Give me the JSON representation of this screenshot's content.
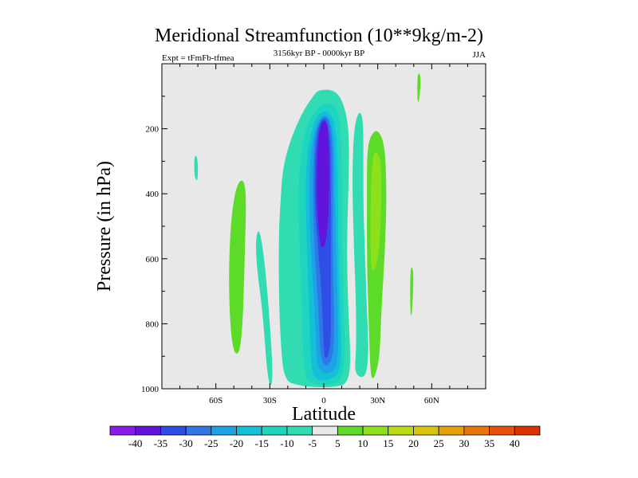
{
  "chart_data": {
    "type": "contour",
    "title": "Meridional Streamfunction (10**9kg/m-2)",
    "left_subtitle": "Expt = tFmFb-tfmea",
    "center_subtitle": "3156kyr BP - 0000kyr BP",
    "right_subtitle": "JJA",
    "xlabel": "Latitude",
    "ylabel": "Pressure (in hPa)",
    "xlim": [
      -90,
      90
    ],
    "ylim": [
      1000,
      0
    ],
    "x_ticks": [
      {
        "value": -60,
        "label": "60S"
      },
      {
        "value": -30,
        "label": "30S"
      },
      {
        "value": 0,
        "label": "0"
      },
      {
        "value": 30,
        "label": "30N"
      },
      {
        "value": 60,
        "label": "60N"
      }
    ],
    "y_ticks": [
      {
        "value": 200,
        "label": "200"
      },
      {
        "value": 400,
        "label": "400"
      },
      {
        "value": 600,
        "label": "600"
      },
      {
        "value": 800,
        "label": "800"
      },
      {
        "value": 1000,
        "label": "1000"
      }
    ],
    "background_color": "#e8e8e8",
    "colorbar": {
      "labels": [
        "-40",
        "-35",
        "-30",
        "-25",
        "-20",
        "-15",
        "-10",
        "-5",
        "5",
        "10",
        "15",
        "20",
        "25",
        "30",
        "35",
        "40"
      ],
      "colors": [
        "#8c1aeb",
        "#6214dc",
        "#2f4ee6",
        "#2f78e6",
        "#1ea2e6",
        "#14c0d8",
        "#1ed6c0",
        "#31dcb2",
        "#e8e8e8",
        "#5cdc28",
        "#8ee01a",
        "#b8dc10",
        "#d8c40a",
        "#e6a00a",
        "#e6780a",
        "#e6500a",
        "#dc3200"
      ]
    },
    "regions": [
      {
        "level": -5,
        "color": "#31dcb2",
        "points": [
          [
            -22,
            975
          ],
          [
            -24,
            860
          ],
          [
            -25,
            700
          ],
          [
            -25,
            520
          ],
          [
            -24,
            420
          ],
          [
            -23,
            330
          ],
          [
            -19,
            240
          ],
          [
            -12,
            150
          ],
          [
            -6,
            100
          ],
          [
            -3,
            80
          ],
          [
            6,
            80
          ],
          [
            11,
            120
          ],
          [
            14,
            200
          ],
          [
            14,
            350
          ],
          [
            13,
            500
          ],
          [
            13,
            650
          ],
          [
            14,
            800
          ],
          [
            15,
            925
          ],
          [
            13,
            985
          ],
          [
            6,
            995
          ],
          [
            -6,
            995
          ],
          [
            -14,
            990
          ]
        ]
      },
      {
        "level": -5,
        "color": "#31dcb2",
        "points": [
          [
            -31,
            990
          ],
          [
            -34,
            760
          ],
          [
            -37,
            640
          ],
          [
            -38,
            545
          ],
          [
            -36,
            500
          ],
          [
            -33,
            600
          ],
          [
            -30,
            790
          ],
          [
            -28,
            985
          ]
        ]
      },
      {
        "level": -5,
        "color": "#31dcb2",
        "points": [
          [
            17,
            955
          ],
          [
            18,
            880
          ],
          [
            18,
            760
          ],
          [
            17,
            600
          ],
          [
            16,
            420
          ],
          [
            16,
            300
          ],
          [
            17,
            190
          ],
          [
            20,
            140
          ],
          [
            22,
            180
          ],
          [
            22,
            300
          ],
          [
            22,
            450
          ],
          [
            23,
            600
          ],
          [
            24,
            760
          ],
          [
            25,
            900
          ],
          [
            23,
            970
          ]
        ]
      },
      {
        "level": -5,
        "color": "#31dcb2",
        "points": [
          [
            -72,
            340
          ],
          [
            -72,
            290
          ],
          [
            -71,
            280
          ],
          [
            -70,
            300
          ],
          [
            -70,
            355
          ],
          [
            -71,
            360
          ]
        ]
      },
      {
        "level": -5,
        "color": "#31dcb2",
        "points": [
          [
            -14,
            355
          ],
          [
            -14,
            330
          ],
          [
            -13,
            320
          ],
          [
            -12,
            340
          ],
          [
            -13,
            360
          ]
        ]
      },
      {
        "level": -10,
        "color": "#1ed6c0",
        "points": [
          [
            -11,
            960
          ],
          [
            -12,
            800
          ],
          [
            -13,
            640
          ],
          [
            -14,
            480
          ],
          [
            -14,
            350
          ],
          [
            -12,
            250
          ],
          [
            -9,
            180
          ],
          [
            -3,
            130
          ],
          [
            5,
            118
          ],
          [
            9,
            160
          ],
          [
            10,
            300
          ],
          [
            10,
            520
          ],
          [
            11,
            720
          ],
          [
            12,
            900
          ],
          [
            10,
            975
          ],
          [
            3,
            990
          ],
          [
            -6,
            988
          ]
        ]
      },
      {
        "level": -15,
        "color": "#14c0d8",
        "points": [
          [
            -7,
            950
          ],
          [
            -8,
            780
          ],
          [
            -9,
            620
          ],
          [
            -10,
            470
          ],
          [
            -10,
            330
          ],
          [
            -8,
            230
          ],
          [
            -4,
            155
          ],
          [
            3,
            140
          ],
          [
            7,
            200
          ],
          [
            8,
            380
          ],
          [
            8,
            560
          ],
          [
            9,
            760
          ],
          [
            10,
            915
          ],
          [
            7,
            965
          ],
          [
            1,
            975
          ],
          [
            -4,
            972
          ]
        ]
      },
      {
        "level": -20,
        "color": "#1ea2e6",
        "points": [
          [
            -4,
            930
          ],
          [
            -5,
            760
          ],
          [
            -7,
            600
          ],
          [
            -8,
            460
          ],
          [
            -8,
            320
          ],
          [
            -6,
            220
          ],
          [
            -2,
            160
          ],
          [
            3,
            158
          ],
          [
            6,
            230
          ],
          [
            6,
            400
          ],
          [
            7,
            600
          ],
          [
            8,
            790
          ],
          [
            8,
            915
          ],
          [
            5,
            950
          ],
          [
            0,
            955
          ]
        ]
      },
      {
        "level": -25,
        "color": "#2f78e6",
        "points": [
          [
            -2,
            910
          ],
          [
            -3,
            740
          ],
          [
            -5,
            590
          ],
          [
            -6,
            450
          ],
          [
            -6,
            320
          ],
          [
            -5,
            215
          ],
          [
            -1,
            162
          ],
          [
            3,
            165
          ],
          [
            5,
            240
          ],
          [
            5,
            430
          ],
          [
            5,
            630
          ],
          [
            6,
            820
          ],
          [
            5,
            900
          ],
          [
            2,
            935
          ]
        ]
      },
      {
        "level": -30,
        "color": "#2f4ee6",
        "points": [
          [
            0,
            890
          ],
          [
            -1,
            720
          ],
          [
            -3,
            580
          ],
          [
            -5,
            440
          ],
          [
            -5,
            320
          ],
          [
            -4,
            215
          ],
          [
            -1,
            168
          ],
          [
            2,
            172
          ],
          [
            4,
            250
          ],
          [
            4,
            450
          ],
          [
            4,
            650
          ],
          [
            4,
            840
          ],
          [
            3,
            890
          ],
          [
            1,
            910
          ]
        ]
      },
      {
        "level": -35,
        "color": "#6214dc",
        "points": [
          [
            -2,
            560
          ],
          [
            -4,
            440
          ],
          [
            -4,
            320
          ],
          [
            -3,
            220
          ],
          [
            -1,
            175
          ],
          [
            2,
            180
          ],
          [
            3,
            260
          ],
          [
            3,
            420
          ],
          [
            2,
            520
          ],
          [
            0,
            570
          ]
        ]
      },
      {
        "level": 5,
        "color": "#5cdc28",
        "points": [
          [
            -51,
            880
          ],
          [
            -53,
            700
          ],
          [
            -52,
            500
          ],
          [
            -49,
            380
          ],
          [
            -45,
            350
          ],
          [
            -43,
            400
          ],
          [
            -44,
            600
          ],
          [
            -45,
            800
          ],
          [
            -47,
            900
          ]
        ]
      },
      {
        "level": 5,
        "color": "#5cdc28",
        "points": [
          [
            26,
            965
          ],
          [
            25,
            800
          ],
          [
            24,
            620
          ],
          [
            24,
            440
          ],
          [
            24,
            270
          ],
          [
            26,
            220
          ],
          [
            30,
            200
          ],
          [
            34,
            250
          ],
          [
            35,
            400
          ],
          [
            34,
            580
          ],
          [
            32,
            760
          ],
          [
            31,
            910
          ],
          [
            28,
            970
          ]
        ]
      },
      {
        "level": 5,
        "color": "#5cdc28",
        "points": [
          [
            48,
            770
          ],
          [
            48,
            640
          ],
          [
            49,
            620
          ],
          [
            50,
            650
          ],
          [
            49,
            780
          ]
        ]
      },
      {
        "level": 5,
        "color": "#5cdc28",
        "points": [
          [
            52,
            115
          ],
          [
            52,
            40
          ],
          [
            53,
            25
          ],
          [
            54,
            50
          ],
          [
            53,
            120
          ]
        ]
      },
      {
        "level": 10,
        "color": "#8ee01a",
        "points": [
          [
            26,
            600
          ],
          [
            26,
            420
          ],
          [
            27,
            290
          ],
          [
            29,
            265
          ],
          [
            32,
            300
          ],
          [
            32,
            430
          ],
          [
            31,
            560
          ],
          [
            29,
            630
          ],
          [
            27,
            640
          ]
        ]
      }
    ]
  }
}
